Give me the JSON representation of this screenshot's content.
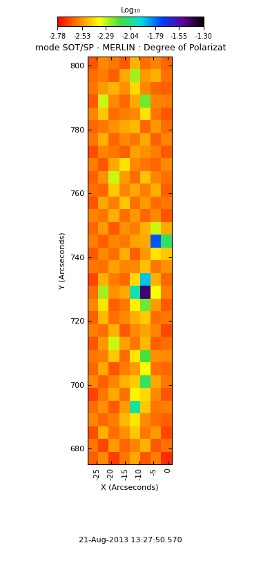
{
  "chart_data": {
    "type": "heatmap",
    "title": "mode SOT/SP - MERLIN : Degree of Polarizat",
    "x_label": "X (Arcseconds)",
    "y_label": "Y (Arcseconds)",
    "date": "21-Aug-2013 13:27:50.570",
    "xlim": [
      -28.2,
      1.5
    ],
    "ylim": [
      675,
      803
    ],
    "xticks": [
      -25,
      -20,
      -15,
      -10,
      -5,
      0
    ],
    "yticks": [
      680,
      700,
      720,
      740,
      760,
      780,
      800
    ],
    "x_edges": [
      -28.2,
      -24.5,
      -20.8,
      -17.1,
      -13.4,
      -9.7,
      -6.0,
      -2.3,
      1.5
    ],
    "y_edges": [
      675,
      679,
      683,
      687,
      691,
      695,
      699,
      703,
      707,
      711,
      715,
      719,
      723,
      727,
      731,
      735,
      739,
      743,
      747,
      751,
      755,
      759,
      763,
      767,
      771,
      775,
      779,
      783,
      787,
      791,
      795,
      799,
      803
    ],
    "cells": [
      [
        -2.62,
        -2.55,
        -2.68,
        -2.58,
        -2.5,
        -2.64,
        -2.57,
        -2.7
      ],
      [
        -2.58,
        -2.66,
        -2.52,
        -2.61,
        -2.56,
        -2.48,
        -2.63,
        -2.59
      ],
      [
        -2.65,
        -2.49,
        -2.6,
        -2.54,
        -2.45,
        -2.58,
        -2.52,
        -2.66
      ],
      [
        -2.56,
        -2.61,
        -2.57,
        -2.47,
        -2.4,
        -2.55,
        -2.6,
        -2.62
      ],
      [
        -2.6,
        -2.54,
        -2.63,
        -2.52,
        -2.02,
        -2.45,
        -2.58,
        -2.57
      ],
      [
        -2.67,
        -2.58,
        -2.5,
        -2.59,
        -2.38,
        -2.42,
        -2.55,
        -2.64
      ],
      [
        -2.55,
        -2.62,
        -2.56,
        -2.48,
        -2.44,
        -2.1,
        -2.5,
        -2.58
      ],
      [
        -2.61,
        -2.5,
        -2.64,
        -2.57,
        -2.52,
        -2.35,
        -2.59,
        -2.61
      ],
      [
        -2.58,
        -2.57,
        -2.45,
        -2.6,
        -2.4,
        -2.15,
        -2.54,
        -2.55
      ],
      [
        -2.64,
        -2.53,
        -2.3,
        -2.51,
        -2.58,
        -2.47,
        -2.62,
        -2.6
      ],
      [
        -2.57,
        -2.6,
        -2.48,
        -2.63,
        -2.55,
        -2.51,
        -2.56,
        -2.66
      ],
      [
        -2.62,
        -2.47,
        -2.59,
        -2.55,
        -2.49,
        -2.44,
        -2.6,
        -2.58
      ],
      [
        -2.55,
        -2.4,
        -2.62,
        -2.58,
        -2.38,
        -2.2,
        -2.52,
        -2.63
      ],
      [
        -2.6,
        -2.25,
        -2.54,
        -2.5,
        -2.0,
        -1.45,
        -2.35,
        -2.57
      ],
      [
        -2.66,
        -2.48,
        -2.57,
        -2.61,
        -2.42,
        -1.9,
        -2.48,
        -2.61
      ],
      [
        -2.58,
        -2.59,
        -2.51,
        -2.56,
        -2.55,
        -2.46,
        -2.58,
        -2.54
      ],
      [
        -2.63,
        -2.55,
        -2.6,
        -2.49,
        -2.62,
        -2.53,
        -2.4,
        -2.45
      ],
      [
        -2.57,
        -2.62,
        -2.56,
        -2.58,
        -2.51,
        -2.5,
        -1.75,
        -2.1
      ],
      [
        -2.61,
        -2.52,
        -2.63,
        -2.54,
        -2.57,
        -2.48,
        -2.3,
        -2.5
      ],
      [
        -2.56,
        -2.58,
        -2.49,
        -2.6,
        -2.53,
        -2.61,
        -2.55,
        -2.64
      ],
      [
        -2.64,
        -2.5,
        -2.57,
        -2.45,
        -2.59,
        -2.52,
        -2.6,
        -2.58
      ],
      [
        -2.59,
        -2.61,
        -2.44,
        -2.56,
        -2.5,
        -2.57,
        -2.49,
        -2.62
      ],
      [
        -2.62,
        -2.54,
        -2.3,
        -2.52,
        -2.6,
        -2.46,
        -2.56,
        -2.59
      ],
      [
        -2.57,
        -2.63,
        -2.5,
        -2.4,
        -2.55,
        -2.58,
        -2.61,
        -2.55
      ],
      [
        -2.65,
        -2.56,
        -2.58,
        -2.62,
        -2.51,
        -2.54,
        -2.57,
        -2.63
      ],
      [
        -2.58,
        -2.49,
        -2.61,
        -2.55,
        -2.58,
        -2.5,
        -2.62,
        -2.56
      ],
      [
        -2.61,
        -2.58,
        -2.54,
        -2.5,
        -2.47,
        -2.61,
        -2.53,
        -2.6
      ],
      [
        -2.56,
        -2.45,
        -2.6,
        -2.57,
        -2.55,
        -2.4,
        -2.58,
        -2.64
      ],
      [
        -2.63,
        -2.3,
        -2.55,
        -2.61,
        -2.5,
        -2.2,
        -2.56,
        -2.57
      ],
      [
        -2.58,
        -2.52,
        -2.48,
        -2.54,
        -2.42,
        -2.55,
        -2.61,
        -2.62
      ],
      [
        -2.6,
        -2.57,
        -2.62,
        -2.5,
        -2.25,
        -2.52,
        -2.49,
        -2.59
      ],
      [
        -2.64,
        -2.55,
        -2.58,
        -2.63,
        -2.48,
        -2.6,
        -2.56,
        -2.61
      ]
    ],
    "colorbar": {
      "label": "Log₁₀",
      "range": [
        -2.78,
        -1.3
      ],
      "ticks": [
        -2.78,
        -2.53,
        -2.29,
        -2.04,
        -1.79,
        -1.55,
        {
          "value": -1.3,
          "label": "-1.30"
        }
      ]
    }
  }
}
